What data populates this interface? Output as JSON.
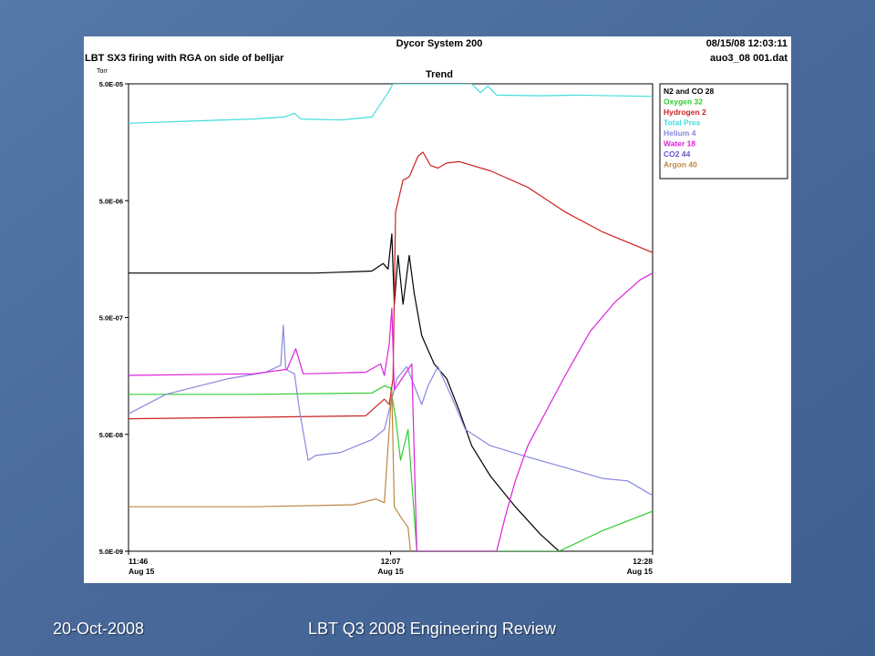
{
  "slide": {
    "footer_date": "20-Oct-2008",
    "footer_title": "LBT Q3 2008 Engineering Review"
  },
  "figure": {
    "system": "Dycor System 200",
    "timestamp": "08/15/08 12:03:11",
    "caption": "LBT SX3 firing with RGA on side of belljar",
    "file": "auo3_08 001.dat"
  },
  "chart_data": {
    "type": "line",
    "title": "Trend",
    "ylabel": "Torr",
    "yscale": "log",
    "ylim": [
      5e-09,
      5e-05
    ],
    "y_ticks": [
      "5.0E-05",
      "5.0E-06",
      "5.0E-07",
      "5.0E-08",
      "5.0E-09"
    ],
    "x_unit": "minutes after 11:46 on Aug 15",
    "xlim": [
      0,
      42
    ],
    "x_ticks": [
      {
        "label": "11:46",
        "sub": "Aug 15",
        "x": 0
      },
      {
        "label": "12:07",
        "sub": "Aug 15",
        "x": 21
      },
      {
        "label": "12:28",
        "sub": "Aug 15",
        "x": 42
      }
    ],
    "legend_position": "right",
    "series": [
      {
        "name": "N2 and CO 28",
        "color": "#000000",
        "points": [
          [
            0,
            1.2e-06
          ],
          [
            5,
            1.2e-06
          ],
          [
            10,
            1.2e-06
          ],
          [
            15,
            1.2e-06
          ],
          [
            19.5,
            1.25e-06
          ],
          [
            20.4,
            1.45e-06
          ],
          [
            20.8,
            1.3e-06
          ],
          [
            21.1,
            2.6e-06
          ],
          [
            21.3,
            6.5e-07
          ],
          [
            21.6,
            1.7e-06
          ],
          [
            22,
            6.5e-07
          ],
          [
            22.5,
            1.7e-06
          ],
          [
            22.9,
            8e-07
          ],
          [
            23.5,
            3.5e-07
          ],
          [
            24.5,
            2e-07
          ],
          [
            25.5,
            1.5e-07
          ],
          [
            26.5,
            8e-08
          ],
          [
            27.5,
            4e-08
          ],
          [
            29,
            2.2e-08
          ],
          [
            31,
            1.2e-08
          ],
          [
            33,
            7e-09
          ],
          [
            34.5,
            5e-09
          ]
        ]
      },
      {
        "name": "Oxygen 32",
        "color": "#33cc33",
        "points": [
          [
            0,
            1.1e-07
          ],
          [
            10,
            1.1e-07
          ],
          [
            19.5,
            1.13e-07
          ],
          [
            20.5,
            1.3e-07
          ],
          [
            21,
            1.25e-07
          ],
          [
            21.4,
            7e-08
          ],
          [
            21.8,
            3e-08
          ],
          [
            22.4,
            5.5e-08
          ],
          [
            23.1,
            5e-09
          ],
          [
            34.5,
            5e-09
          ],
          [
            38,
            7.5e-09
          ],
          [
            42,
            1.1e-08
          ]
        ]
      },
      {
        "name": "Hydrogen 2",
        "color": "#cc2222",
        "points": [
          [
            0,
            6.8e-08
          ],
          [
            10,
            7e-08
          ],
          [
            19,
            7.2e-08
          ],
          [
            20.5,
            1e-07
          ],
          [
            20.9,
            9e-08
          ],
          [
            21.2,
            1.5e-07
          ],
          [
            21.4,
            4e-06
          ],
          [
            22,
            7.5e-06
          ],
          [
            22.5,
            8e-06
          ],
          [
            23.2,
            1.2e-05
          ],
          [
            23.6,
            1.3e-05
          ],
          [
            24.2,
            1e-05
          ],
          [
            24.8,
            9.5e-06
          ],
          [
            25.5,
            1.05e-05
          ],
          [
            26.5,
            1.08e-05
          ],
          [
            29,
            9e-06
          ],
          [
            32,
            6.5e-06
          ],
          [
            35,
            4e-06
          ],
          [
            38,
            2.7e-06
          ],
          [
            42,
            1.8e-06
          ]
        ]
      },
      {
        "name": "Total Pres",
        "color": "#44dddd",
        "points": [
          [
            0,
            2.3e-05
          ],
          [
            5,
            2.4e-05
          ],
          [
            10,
            2.5e-05
          ],
          [
            12.5,
            2.6e-05
          ],
          [
            13.3,
            2.8e-05
          ],
          [
            13.8,
            2.5e-05
          ],
          [
            17,
            2.45e-05
          ],
          [
            19.5,
            2.6e-05
          ],
          [
            20.8,
            4.2e-05
          ],
          [
            21.2,
            5e-05
          ],
          [
            27.5,
            5e-05
          ],
          [
            28.2,
            4.2e-05
          ],
          [
            28.8,
            4.8e-05
          ],
          [
            29.5,
            4e-05
          ],
          [
            33,
            3.95e-05
          ],
          [
            36,
            4e-05
          ],
          [
            42,
            3.9e-05
          ]
        ]
      },
      {
        "name": "Helium 4",
        "color": "#8888dd",
        "points": [
          [
            0,
            7.5e-08
          ],
          [
            3,
            1.1e-07
          ],
          [
            8,
            1.5e-07
          ],
          [
            11,
            1.7e-07
          ],
          [
            12.2,
            1.95e-07
          ],
          [
            12.4,
            4.3e-07
          ],
          [
            12.6,
            1.8e-07
          ],
          [
            13.3,
            1.65e-07
          ],
          [
            13.7,
            8e-08
          ],
          [
            14.4,
            3e-08
          ],
          [
            15,
            3.3e-08
          ],
          [
            17,
            3.5e-08
          ],
          [
            19.5,
            4.5e-08
          ],
          [
            20.5,
            5.5e-08
          ],
          [
            21,
            9e-08
          ],
          [
            21.5,
            1.5e-07
          ],
          [
            22.3,
            1.9e-07
          ],
          [
            22.9,
            1.3e-07
          ],
          [
            23.5,
            9e-08
          ],
          [
            24,
            1.3e-07
          ],
          [
            24.8,
            1.9e-07
          ],
          [
            25.8,
            1.1e-07
          ],
          [
            27,
            5.5e-08
          ],
          [
            29,
            4e-08
          ],
          [
            32,
            3.2e-08
          ],
          [
            35,
            2.6e-08
          ],
          [
            38,
            2.1e-08
          ],
          [
            40,
            2e-08
          ],
          [
            42,
            1.5e-08
          ]
        ]
      },
      {
        "name": "Water 18",
        "color": "#dd22dd",
        "points": [
          [
            0,
            1.6e-07
          ],
          [
            10,
            1.65e-07
          ],
          [
            12.7,
            1.8e-07
          ],
          [
            13.4,
            2.7e-07
          ],
          [
            14,
            1.65e-07
          ],
          [
            19,
            1.7e-07
          ],
          [
            20.2,
            2e-07
          ],
          [
            20.5,
            1.6e-07
          ],
          [
            20.9,
            3e-07
          ],
          [
            21.1,
            6e-07
          ],
          [
            21.3,
            1.2e-07
          ],
          [
            22.7,
            2e-07
          ],
          [
            23.1,
            5e-09
          ],
          [
            29.5,
            5e-09
          ],
          [
            30.2,
            1e-08
          ],
          [
            31,
            2e-08
          ],
          [
            32,
            4e-08
          ],
          [
            33.5,
            8e-08
          ],
          [
            35,
            1.6e-07
          ],
          [
            37,
            3.8e-07
          ],
          [
            39,
            6.8e-07
          ],
          [
            41,
            1.05e-06
          ],
          [
            42,
            1.2e-06
          ]
        ]
      },
      {
        "name": "CO2 44",
        "color": "#6655cc",
        "points": []
      },
      {
        "name": "Argon 40",
        "color": "#bb8844",
        "points": [
          [
            0,
            1.2e-08
          ],
          [
            10,
            1.2e-08
          ],
          [
            18,
            1.25e-08
          ],
          [
            19.8,
            1.4e-08
          ],
          [
            20.5,
            1.3e-08
          ],
          [
            21.1,
            1.2e-07
          ],
          [
            21.3,
            1.2e-08
          ],
          [
            21.9,
            9.5e-09
          ],
          [
            22.4,
            8e-09
          ],
          [
            22.6,
            5e-09
          ]
        ]
      }
    ]
  }
}
